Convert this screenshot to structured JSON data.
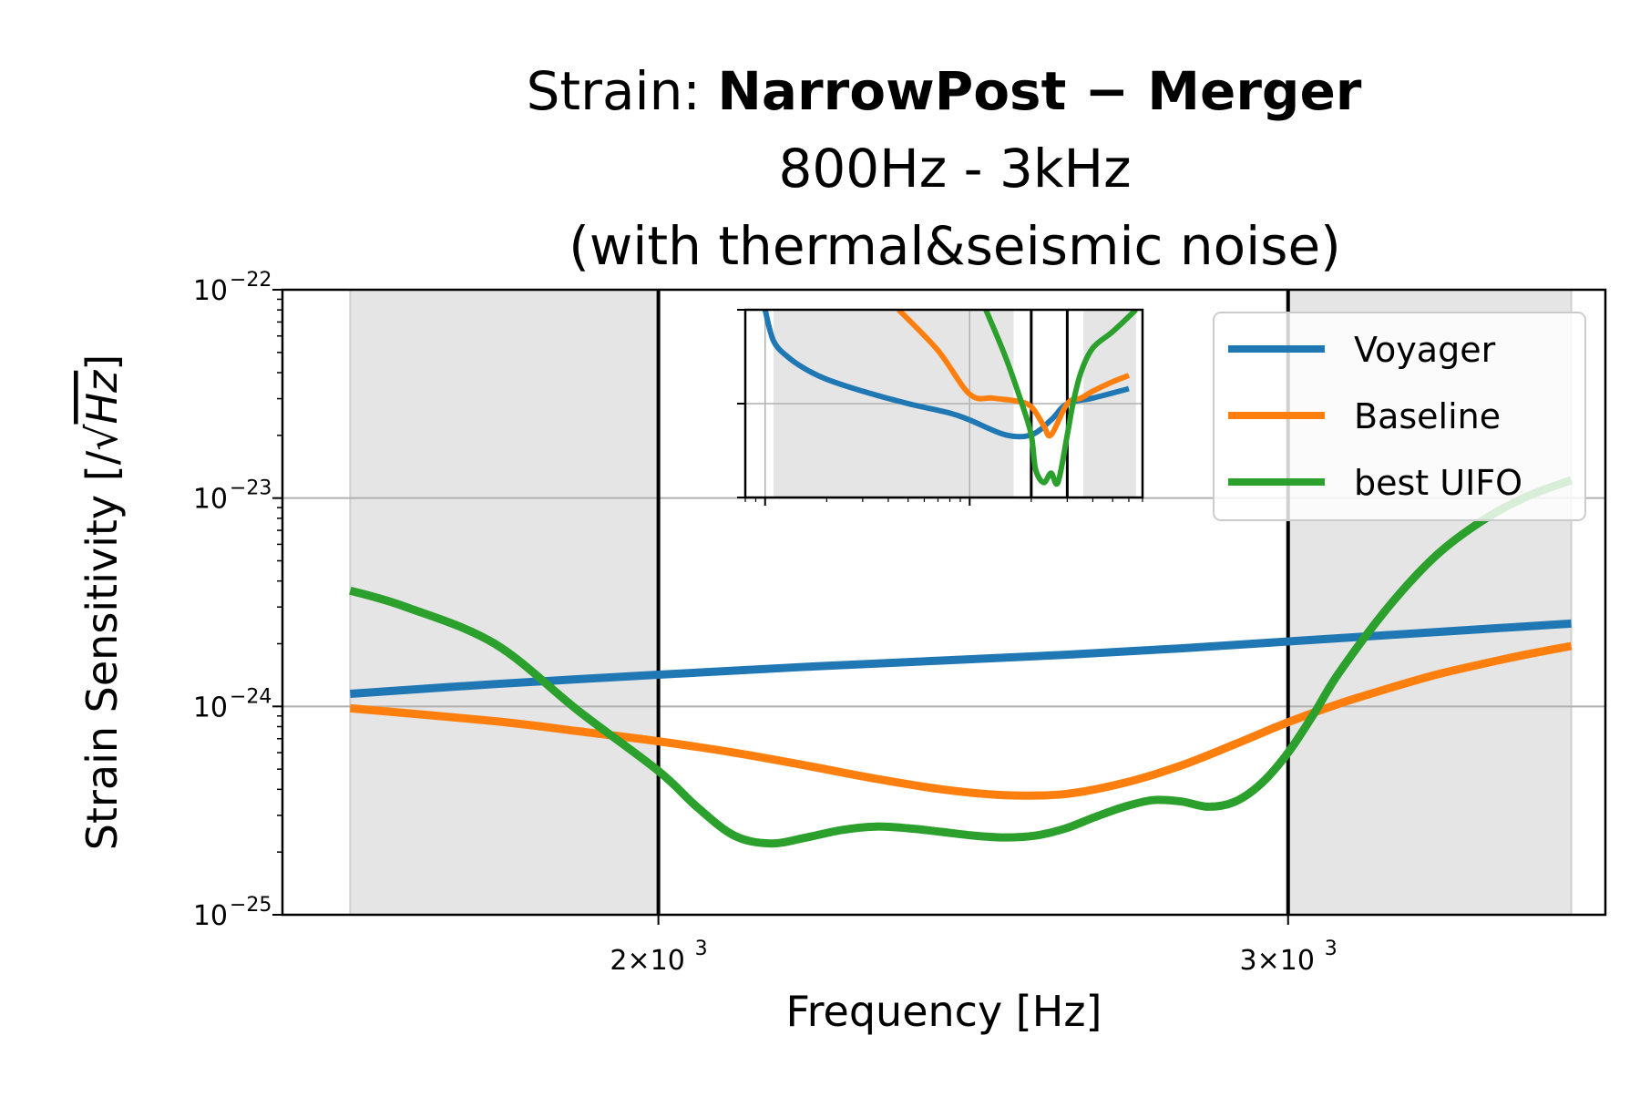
{
  "chart_data": {
    "type": "line",
    "title": {
      "prefix": "Strain: ",
      "bold": "NarrowPost − Merger",
      "line2": "800Hz - 3kHz",
      "line3": "(with thermal&seismic noise)"
    },
    "xlabel": "Frequency [Hz]",
    "ylabel_prefix": "Strain Sensitivity [/",
    "ylabel_unit": "Hz",
    "ylabel_suffix": "]",
    "x_scale": "log",
    "y_scale": "log",
    "xlim": [
      1570,
      3680
    ],
    "ylim": [
      1e-25,
      1e-22
    ],
    "x_major_ticks": [
      {
        "value": 2000,
        "mantissa": "2",
        "exponent": "3"
      },
      {
        "value": 3000,
        "mantissa": "3",
        "exponent": "3"
      }
    ],
    "y_major_ticks": [
      {
        "value": 1e-25,
        "exponent": "−25"
      },
      {
        "value": 1e-24,
        "exponent": "−24"
      },
      {
        "value": 1e-23,
        "exponent": "−23"
      },
      {
        "value": 1e-22,
        "exponent": "−22"
      }
    ],
    "grid": true,
    "legend_position": "top-right",
    "shaded_regions": [
      [
        1640,
        2000
      ],
      [
        3000,
        3600
      ]
    ],
    "vertical_lines": [
      2000,
      3000
    ],
    "series": [
      {
        "name": "Voyager",
        "color": "#1f77b4",
        "x": [
          1640,
          1800,
          2000,
          2200,
          2400,
          2600,
          2800,
          3000,
          3200,
          3400,
          3600
        ],
        "y": [
          1.15e-24,
          1.28e-24,
          1.42e-24,
          1.55e-24,
          1.66e-24,
          1.77e-24,
          1.9e-24,
          2.05e-24,
          2.2e-24,
          2.35e-24,
          2.5e-24
        ]
      },
      {
        "name": "Baseline",
        "color": "#ff7f0e",
        "x": [
          1640,
          1800,
          1900,
          2000,
          2100,
          2200,
          2300,
          2400,
          2500,
          2600,
          2700,
          2800,
          2900,
          3000,
          3100,
          3200,
          3300,
          3400,
          3500,
          3600
        ],
        "y": [
          9.8e-25,
          8.5e-25,
          7.6e-25,
          6.8e-25,
          6e-25,
          5.2e-25,
          4.5e-25,
          4e-25,
          3.75e-25,
          3.8e-25,
          4.3e-25,
          5.2e-25,
          6.6e-25,
          8.4e-25,
          1.03e-24,
          1.22e-24,
          1.42e-24,
          1.6e-24,
          1.78e-24,
          1.95e-24
        ]
      },
      {
        "name": "best UIFO",
        "color": "#2ca02c",
        "x": [
          1640,
          1700,
          1800,
          1900,
          2000,
          2050,
          2100,
          2150,
          2200,
          2250,
          2300,
          2350,
          2400,
          2450,
          2500,
          2550,
          2600,
          2650,
          2700,
          2750,
          2800,
          2850,
          2900,
          2950,
          3000,
          3050,
          3100,
          3200,
          3300,
          3400,
          3500,
          3600
        ],
        "y": [
          3.6e-24,
          3e-24,
          2e-24,
          9.5e-25,
          4.9e-25,
          3.3e-25,
          2.4e-25,
          2.2e-25,
          2.35e-25,
          2.55e-25,
          2.65e-25,
          2.6e-25,
          2.5e-25,
          2.4e-25,
          2.35e-25,
          2.4e-25,
          2.6e-25,
          2.95e-25,
          3.3e-25,
          3.55e-25,
          3.5e-25,
          3.3e-25,
          3.5e-25,
          4.3e-25,
          6e-25,
          9.2e-25,
          1.45e-24,
          3e-24,
          5.3e-24,
          7.8e-24,
          1.02e-23,
          1.22e-23
        ]
      }
    ]
  },
  "inset": {
    "xlim": [
      80,
      7000
    ],
    "ylim": [
      1e-24,
      1e-18
    ],
    "shaded_regions": [
      [
        110,
        1640
      ],
      [
        3600,
        6500
      ]
    ],
    "vertical_lines": [
      2000,
      3000
    ],
    "series": [
      {
        "name": "Voyager",
        "color": "#1f77b4",
        "x": [
          100,
          110,
          130,
          160,
          200,
          300,
          500,
          800,
          1000,
          1500,
          2000,
          2500,
          3000,
          4000,
          6000
        ],
        "y": [
          1e-18,
          1e-19,
          3e-20,
          1.2e-20,
          6e-21,
          2.5e-21,
          1e-21,
          5e-22,
          3e-22,
          1e-22,
          1e-22,
          3e-22,
          1e-21,
          1.5e-21,
          3e-21
        ]
      },
      {
        "name": "Baseline",
        "color": "#ff7f0e",
        "x": [
          450,
          700,
          1000,
          1300,
          1700,
          2000,
          2300,
          2500,
          3000,
          3500,
          4000,
          5000,
          6000
        ],
        "y": [
          1e-18,
          5e-20,
          2e-21,
          1.5e-21,
          1.2e-21,
          8e-22,
          2e-22,
          1e-22,
          1e-21,
          1.5e-21,
          2.5e-21,
          5e-21,
          8e-21
        ]
      },
      {
        "name": "best UIFO",
        "color": "#2ca02c",
        "x": [
          1200,
          1500,
          1800,
          2000,
          2100,
          2300,
          2500,
          2700,
          3000,
          3200,
          3500,
          4000,
          5000,
          6500
        ],
        "y": [
          1e-18,
          3e-20,
          1e-21,
          1e-22,
          8e-24,
          3e-24,
          6e-24,
          3e-24,
          1e-22,
          1e-21,
          1e-20,
          6e-20,
          2e-19,
          1e-18
        ]
      }
    ]
  }
}
